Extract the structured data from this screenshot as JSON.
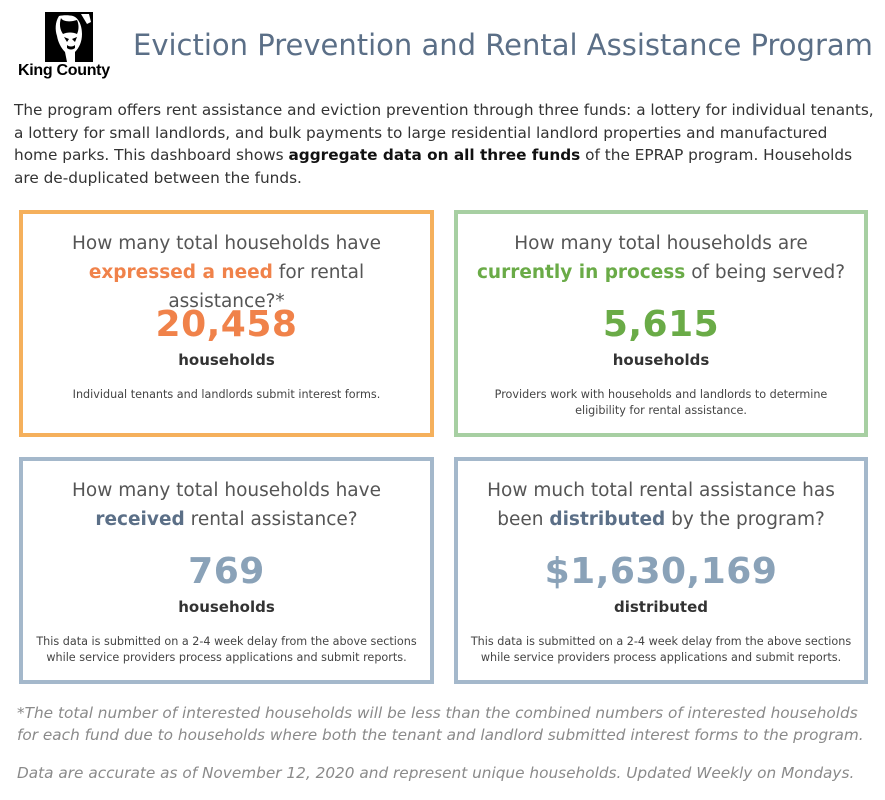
{
  "header": {
    "logo_text": "King County",
    "title": "Eviction Prevention and Rental Assistance Program"
  },
  "intro": {
    "text_before": "The program offers rent assistance and eviction prevention through three funds: a lottery for individual tenants, a lottery for small landlords, and bulk payments to large residential landlord properties and manufactured home parks. This dashboard shows ",
    "bold": "aggregate data on all three funds",
    "text_after": " of the EPRAP program. Households are de-duplicated between the funds."
  },
  "colors": {
    "title": "#5b6f87",
    "need": "#f0824a",
    "process": "#6aab47",
    "received": "#5b6f87",
    "distributed": "#8aa2b8",
    "border_need": "#f5b05c",
    "border_process": "#a7cfa2",
    "border_blue": "#a4b8cb"
  },
  "cards": {
    "need": {
      "q_before": "How many total households have ",
      "q_highlight": "expressed a need",
      "q_after": " for rental assistance?*",
      "value": "20,458",
      "unit": "households",
      "desc": "Individual tenants and landlords submit interest forms."
    },
    "process": {
      "q_before": "How many total households are ",
      "q_highlight": "currently in process",
      "q_after": " of being served?",
      "value": "5,615",
      "unit": "households",
      "desc": "Providers work with households and landlords to determine eligibility for rental assistance."
    },
    "received": {
      "q_before": "How many total households have ",
      "q_highlight": "received",
      "q_after": " rental assistance?",
      "value": "769",
      "unit": "households",
      "desc": "This data is submitted on a 2-4 week delay from the above sections while service providers process applications and submit reports."
    },
    "distributed": {
      "q_before": "How much total rental assistance has been ",
      "q_highlight": "distributed",
      "q_after": " by the program?",
      "value": "$1,630,169",
      "unit": "distributed",
      "desc": "This data is submitted on a 2-4 week delay from the above sections while service providers process applications and submit reports."
    }
  },
  "footer": {
    "note": "*The total number of interested households will be less than the combined numbers of interested households for each fund due to households where both the tenant and landlord submitted interest forms to the program.",
    "accuracy": "Data are accurate as of November 12, 2020 and represent unique households. Updated Weekly on Mondays."
  }
}
